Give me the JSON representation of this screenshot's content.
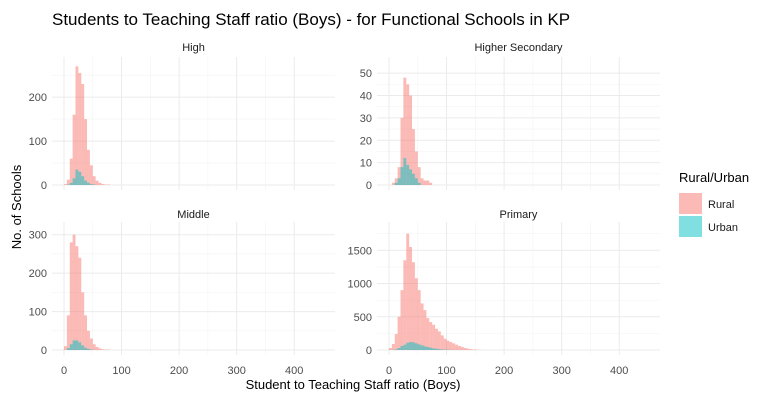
{
  "chart_data": {
    "type": "histogram",
    "title": "Students to Teaching Staff ratio (Boys) - for Functional Schools in KP",
    "xlabel": "Student to Teaching Staff ratio (Boys)",
    "ylabel": "No. of Schools",
    "xlim": [
      0,
      450
    ],
    "x_ticks": [
      0,
      100,
      200,
      300,
      400
    ],
    "bin_width": 5,
    "legend": {
      "title": "Rural/Urban",
      "position": "right",
      "entries": [
        {
          "name": "Rural",
          "color": "#F8766D"
        },
        {
          "name": "Urban",
          "color": "#00BFC4"
        }
      ]
    },
    "fill_alpha": 0.5,
    "panels": [
      {
        "name": "High",
        "ylim": [
          0,
          280
        ],
        "y_ticks": [
          0,
          100,
          200
        ],
        "series": [
          {
            "name": "Rural",
            "bins_start": 0,
            "values": [
              2,
              12,
              60,
              160,
              270,
              255,
              230,
              150,
              80,
              45,
              20,
              10,
              5,
              2,
              1,
              1
            ]
          },
          {
            "name": "Urban",
            "bins_start": 0,
            "values": [
              0,
              1,
              5,
              15,
              35,
              30,
              20,
              10,
              5,
              2,
              1,
              0,
              0,
              0,
              0,
              0
            ]
          }
        ]
      },
      {
        "name": "Higher Secondary",
        "ylim": [
          0,
          55
        ],
        "y_ticks": [
          0,
          10,
          20,
          30,
          40,
          50
        ],
        "series": [
          {
            "name": "Rural",
            "bins_start": 0,
            "values": [
              0,
              1,
              3,
              8,
              30,
              48,
              45,
              40,
              25,
              15,
              8,
              3,
              2,
              2,
              1,
              0
            ]
          },
          {
            "name": "Urban",
            "bins_start": 0,
            "values": [
              0,
              0,
              1,
              3,
              8,
              12,
              9,
              7,
              5,
              3,
              1,
              0,
              0,
              0,
              0,
              0
            ]
          }
        ]
      },
      {
        "name": "Middle",
        "ylim": [
          0,
          320
        ],
        "y_ticks": [
          0,
          100,
          200,
          300
        ],
        "series": [
          {
            "name": "Rural",
            "bins_start": 0,
            "values": [
              10,
              90,
              280,
              300,
              270,
              240,
              150,
              90,
              50,
              30,
              15,
              8,
              4,
              2,
              1,
              1
            ]
          },
          {
            "name": "Urban",
            "bins_start": 0,
            "values": [
              0,
              5,
              15,
              25,
              25,
              20,
              12,
              6,
              3,
              1,
              0,
              0,
              0,
              0,
              0,
              0
            ]
          }
        ]
      },
      {
        "name": "Primary",
        "ylim": [
          0,
          1850
        ],
        "y_ticks": [
          0,
          500,
          1000,
          1500
        ],
        "series": [
          {
            "name": "Rural",
            "bins_start": 0,
            "values": [
              30,
              90,
              240,
              500,
              900,
              1350,
              1750,
              1550,
              1320,
              1080,
              900,
              700,
              600,
              480,
              420,
              380,
              320,
              280,
              220,
              170,
              140,
              120,
              100,
              80,
              60,
              45,
              30,
              20,
              12,
              8,
              5,
              3
            ]
          },
          {
            "name": "Urban",
            "bins_start": 0,
            "values": [
              0,
              2,
              10,
              30,
              60,
              80,
              110,
              120,
              115,
              100,
              85,
              70,
              55,
              45,
              35,
              25,
              18,
              12,
              8,
              5,
              3,
              2,
              1,
              1,
              0,
              0,
              0,
              0,
              0,
              0,
              0,
              0
            ]
          }
        ]
      }
    ]
  }
}
